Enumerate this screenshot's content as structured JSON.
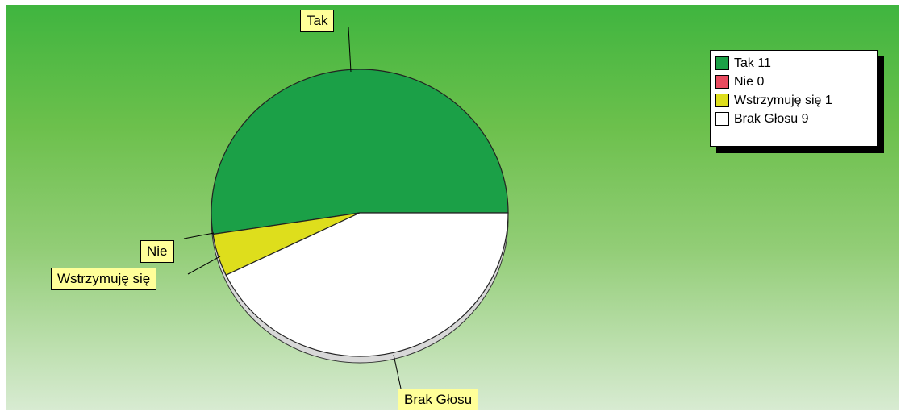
{
  "chart_data": {
    "type": "pie",
    "slices": [
      {
        "label": "Tak",
        "value": 11,
        "color": "#1ba047"
      },
      {
        "label": "Nie",
        "value": 0,
        "color": "#e84a5f"
      },
      {
        "label": "Wstrzymuję się",
        "value": 1,
        "color": "#dede1c"
      },
      {
        "label": "Brak Głosu",
        "value": 9,
        "color": "#ffffff"
      }
    ],
    "legend": {
      "placement": "top-right",
      "entries": [
        "Tak 11",
        "Nie 0",
        "Wstrzymuję się 1",
        "Brak Głosu 9"
      ]
    },
    "callouts": [
      "Tak",
      "Nie",
      "Wstrzymuję się",
      "Brak Głosu"
    ]
  }
}
